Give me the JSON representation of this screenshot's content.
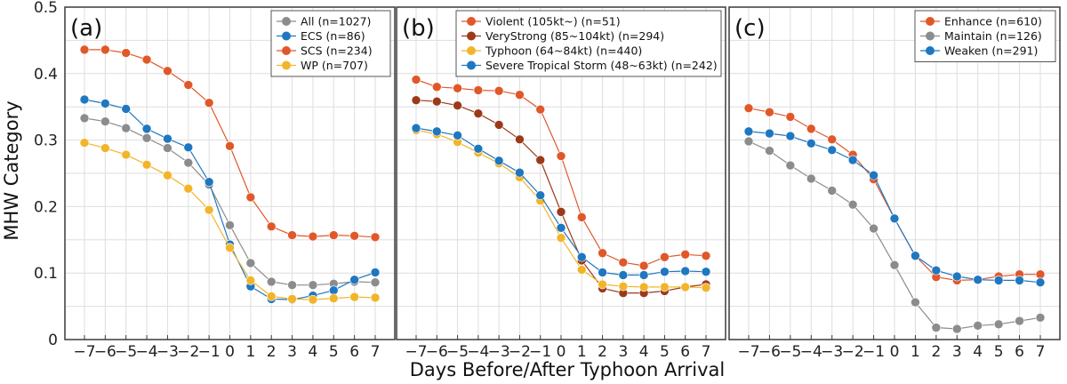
{
  "ylabel": "MHW Category",
  "xlabel": "Days Before/After Typhoon Arrival",
  "chart_data": [
    {
      "type": "line",
      "panel": "(a)",
      "x": [
        -7,
        -6,
        -5,
        -4,
        -3,
        -2,
        -1,
        0,
        1,
        2,
        3,
        4,
        5,
        6,
        7
      ],
      "ylim": [
        0,
        0.5
      ],
      "yticks": [
        0,
        0.1,
        0.2,
        0.3,
        0.4,
        0.5
      ],
      "ytick_labels": [
        "0",
        "0.1",
        "0.2",
        "0.3",
        "0.4",
        "0.5"
      ],
      "grid": true,
      "legend": "top-right",
      "series": [
        {
          "name": "All (n=1027)",
          "color": "#8c8c8c",
          "values": [
            0.333,
            0.328,
            0.318,
            0.303,
            0.288,
            0.266,
            0.233,
            0.172,
            0.115,
            0.087,
            0.082,
            0.082,
            0.084,
            0.087,
            0.086
          ]
        },
        {
          "name": "ECS (n=86)",
          "color": "#1f77c0",
          "values": [
            0.361,
            0.355,
            0.347,
            0.317,
            0.302,
            0.289,
            0.237,
            0.143,
            0.08,
            0.061,
            0.06,
            0.066,
            0.074,
            0.09,
            0.101
          ]
        },
        {
          "name": "SCS (n=234)",
          "color": "#e0582a",
          "values": [
            0.436,
            0.436,
            0.431,
            0.421,
            0.404,
            0.383,
            0.356,
            0.291,
            0.214,
            0.17,
            0.157,
            0.155,
            0.157,
            0.156,
            0.154
          ]
        },
        {
          "name": "WP (n=707)",
          "color": "#f2b52a",
          "values": [
            0.296,
            0.288,
            0.278,
            0.263,
            0.247,
            0.227,
            0.195,
            0.138,
            0.089,
            0.065,
            0.061,
            0.06,
            0.062,
            0.064,
            0.063
          ]
        }
      ]
    },
    {
      "type": "line",
      "panel": "(b)",
      "x": [
        -7,
        -6,
        -5,
        -4,
        -3,
        -2,
        -1,
        0,
        1,
        2,
        3,
        4,
        5,
        6,
        7
      ],
      "ylim": [
        0,
        0.5
      ],
      "grid": true,
      "legend": "top-right",
      "series": [
        {
          "name": "Violent (105kt~) (n=51)",
          "color": "#e0582a",
          "values": [
            0.391,
            0.38,
            0.378,
            0.375,
            0.374,
            0.368,
            0.346,
            0.276,
            0.184,
            0.13,
            0.116,
            0.111,
            0.124,
            0.128,
            0.126
          ]
        },
        {
          "name": "VeryStrong (85~104kt) (n=294)",
          "color": "#9b3a1a",
          "values": [
            0.36,
            0.358,
            0.352,
            0.34,
            0.323,
            0.301,
            0.27,
            0.192,
            0.119,
            0.077,
            0.07,
            0.07,
            0.073,
            0.079,
            0.083
          ]
        },
        {
          "name": "Typhoon (64~84kt) (n=440)",
          "color": "#f2b52a",
          "values": [
            0.315,
            0.309,
            0.297,
            0.281,
            0.265,
            0.244,
            0.209,
            0.153,
            0.105,
            0.083,
            0.08,
            0.079,
            0.079,
            0.079,
            0.078
          ]
        },
        {
          "name": "Severe Tropical Storm (48~63kt) (n=242)",
          "color": "#1f77c0",
          "values": [
            0.318,
            0.313,
            0.307,
            0.287,
            0.269,
            0.251,
            0.217,
            0.168,
            0.124,
            0.101,
            0.097,
            0.097,
            0.102,
            0.103,
            0.102
          ]
        }
      ]
    },
    {
      "type": "line",
      "panel": "(c)",
      "x": [
        -7,
        -6,
        -5,
        -4,
        -3,
        -2,
        -1,
        0,
        1,
        2,
        3,
        4,
        5,
        6,
        7
      ],
      "ylim": [
        0,
        0.5
      ],
      "grid": true,
      "legend": "top-right",
      "series": [
        {
          "name": "Enhance (n=610)",
          "color": "#e0582a",
          "values": [
            0.348,
            0.342,
            0.335,
            0.317,
            0.301,
            0.278,
            0.241,
            0.182,
            0.126,
            0.094,
            0.089,
            0.09,
            0.095,
            0.098,
            0.098
          ]
        },
        {
          "name": "Maintain (n=126)",
          "color": "#8c8c8c",
          "values": [
            0.298,
            0.284,
            0.262,
            0.242,
            0.224,
            0.203,
            0.167,
            0.112,
            0.056,
            0.018,
            0.016,
            0.021,
            0.023,
            0.028,
            0.033
          ]
        },
        {
          "name": "Weaken (n=291)",
          "color": "#1f77c0",
          "values": [
            0.313,
            0.31,
            0.306,
            0.295,
            0.285,
            0.27,
            0.247,
            0.182,
            0.126,
            0.104,
            0.095,
            0.09,
            0.089,
            0.089,
            0.086
          ]
        }
      ]
    }
  ]
}
